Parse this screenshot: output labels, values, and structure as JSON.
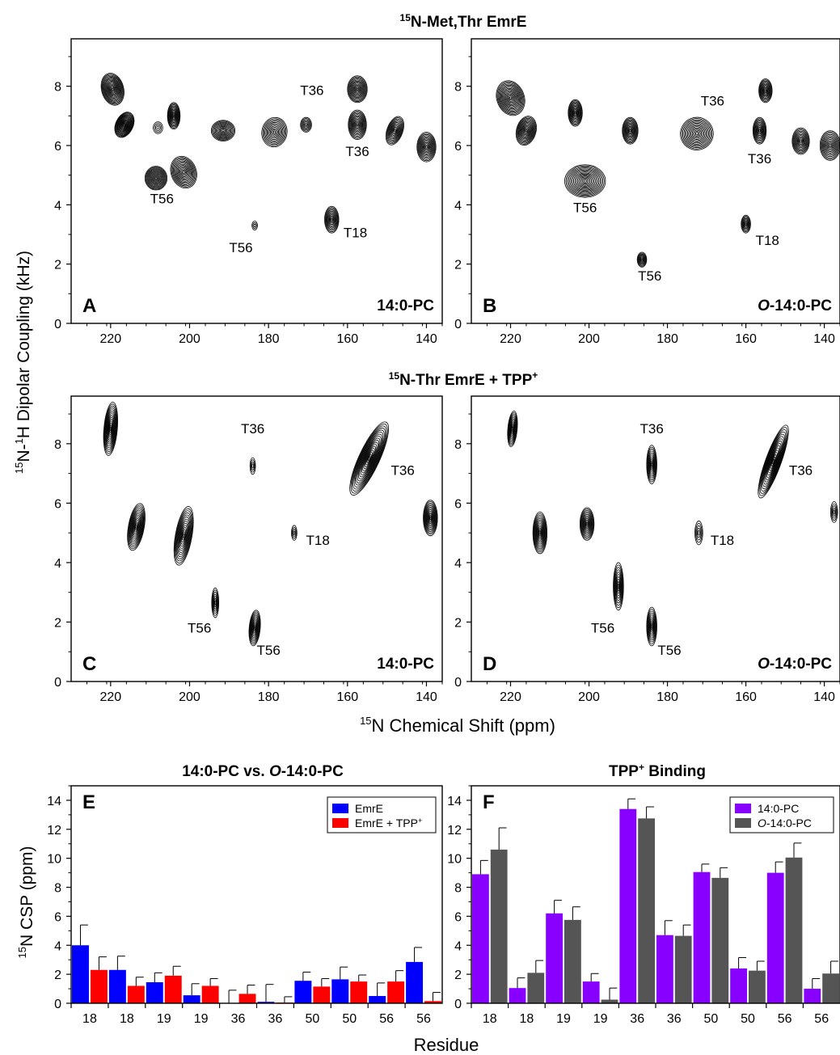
{
  "figure": {
    "title_top": {
      "sup": "15",
      "text": "N-Met,Thr EmrE"
    },
    "title_mid": {
      "sup": "15",
      "text": "N-Thr EmrE + TPP",
      "sup2": "+"
    },
    "nmr_ylabel": {
      "sup1": "15",
      "a": "N-",
      "sup2": "1",
      "b": "H Dipolar Coupling (kHz)"
    },
    "nmr_xlabel": {
      "sup": "15",
      "text": "N Chemical Shift (ppm)"
    },
    "bar_ylabel": {
      "sup": "15",
      "text": "N CSP (ppm)"
    },
    "bar_xlabel": "Residue",
    "title_E": {
      "a": "14:0-PC vs. ",
      "italic": "O",
      "b": "-14:0-PC"
    },
    "title_F": {
      "a": "TPP",
      "sup": "+",
      "b": " Binding"
    }
  },
  "chart_data": [
    {
      "panel": "A",
      "type": "contour",
      "lipid": "14:0-PC",
      "x_ticks": [
        220,
        200,
        180,
        160,
        140
      ],
      "y_ticks": [
        0,
        2,
        4,
        6,
        8
      ],
      "xlim": [
        230,
        136
      ],
      "ylim": [
        0,
        9.6
      ],
      "peaks": [
        {
          "x": 219.5,
          "y": 7.9,
          "sx": 2.8,
          "sy": 0.55,
          "rot": -15,
          "n": 16
        },
        {
          "x": 216.5,
          "y": 6.7,
          "sx": 2.2,
          "sy": 0.45,
          "rot": 25,
          "n": 16
        },
        {
          "x": 208,
          "y": 6.6,
          "sx": 1.2,
          "sy": 0.2,
          "rot": 0,
          "n": 4
        },
        {
          "x": 204,
          "y": 7.0,
          "sx": 1.6,
          "sy": 0.45,
          "rot": 0,
          "n": 12
        },
        {
          "x": 208.5,
          "y": 4.9,
          "sx": 2.8,
          "sy": 0.4,
          "rot": 0,
          "n": 14
        },
        {
          "x": 201.5,
          "y": 5.1,
          "sx": 3.2,
          "sy": 0.55,
          "rot": -20,
          "n": 14
        },
        {
          "x": 191.5,
          "y": 6.5,
          "sx": 3.0,
          "sy": 0.35,
          "rot": 0,
          "n": 12
        },
        {
          "x": 178.5,
          "y": 6.45,
          "sx": 3.2,
          "sy": 0.5,
          "rot": 10,
          "n": 12
        },
        {
          "x": 170.5,
          "y": 6.7,
          "sx": 1.4,
          "sy": 0.25,
          "rot": 0,
          "n": 7
        },
        {
          "x": 157.5,
          "y": 7.9,
          "sx": 2.5,
          "sy": 0.45,
          "rot": 0,
          "n": 13
        },
        {
          "x": 157.5,
          "y": 6.7,
          "sx": 2.3,
          "sy": 0.5,
          "rot": 0,
          "n": 13
        },
        {
          "x": 148,
          "y": 6.5,
          "sx": 2.0,
          "sy": 0.5,
          "rot": 20,
          "n": 12
        },
        {
          "x": 140,
          "y": 5.95,
          "sx": 2.4,
          "sy": 0.5,
          "rot": 0,
          "n": 13
        },
        {
          "x": 164,
          "y": 3.5,
          "sx": 1.8,
          "sy": 0.45,
          "rot": 0,
          "n": 11
        },
        {
          "x": 183.5,
          "y": 3.3,
          "sx": 0.7,
          "sy": 0.15,
          "rot": 0,
          "n": 3
        }
      ],
      "labels": [
        {
          "text": "T36",
          "x": 169,
          "y": 7.7
        },
        {
          "text": "T36",
          "x": 157.5,
          "y": 5.65
        },
        {
          "text": "T56",
          "x": 207,
          "y": 4.05
        },
        {
          "text": "T56",
          "x": 187,
          "y": 2.4
        },
        {
          "text": "T18",
          "x": 158,
          "y": 2.9
        }
      ]
    },
    {
      "panel": "B",
      "type": "contour",
      "lipid": "O-14:0-PC",
      "x_ticks": [
        220,
        200,
        180,
        160,
        140
      ],
      "y_ticks": [
        0,
        2,
        4,
        6,
        8
      ],
      "xlim": [
        230,
        136
      ],
      "ylim": [
        0,
        9.6
      ],
      "peaks": [
        {
          "x": 220,
          "y": 7.6,
          "sx": 3.5,
          "sy": 0.6,
          "rot": -20,
          "n": 16
        },
        {
          "x": 216,
          "y": 6.5,
          "sx": 2.5,
          "sy": 0.5,
          "rot": 15,
          "n": 14
        },
        {
          "x": 203.5,
          "y": 7.1,
          "sx": 1.8,
          "sy": 0.45,
          "rot": 0,
          "n": 12
        },
        {
          "x": 201,
          "y": 4.8,
          "sx": 5.2,
          "sy": 0.55,
          "rot": 0,
          "n": 16
        },
        {
          "x": 189.5,
          "y": 6.5,
          "sx": 2.0,
          "sy": 0.45,
          "rot": 0,
          "n": 12
        },
        {
          "x": 172.5,
          "y": 6.4,
          "sx": 4.2,
          "sy": 0.55,
          "rot": -20,
          "n": 14
        },
        {
          "x": 155,
          "y": 7.85,
          "sx": 1.7,
          "sy": 0.4,
          "rot": 0,
          "n": 11
        },
        {
          "x": 156.5,
          "y": 6.5,
          "sx": 1.7,
          "sy": 0.45,
          "rot": 0,
          "n": 11
        },
        {
          "x": 146,
          "y": 6.15,
          "sx": 2.2,
          "sy": 0.45,
          "rot": 0,
          "n": 12
        },
        {
          "x": 138.5,
          "y": 6.0,
          "sx": 2.6,
          "sy": 0.5,
          "rot": 0,
          "n": 12
        },
        {
          "x": 160,
          "y": 3.35,
          "sx": 1.2,
          "sy": 0.3,
          "rot": 0,
          "n": 8
        },
        {
          "x": 186.5,
          "y": 2.15,
          "sx": 1.2,
          "sy": 0.25,
          "rot": 0,
          "n": 8
        }
      ],
      "labels": [
        {
          "text": "T36",
          "x": 168.5,
          "y": 7.35
        },
        {
          "text": "T36",
          "x": 156.5,
          "y": 5.4
        },
        {
          "text": "T56",
          "x": 201,
          "y": 3.75
        },
        {
          "text": "T56",
          "x": 184.5,
          "y": 1.45
        },
        {
          "text": "T18",
          "x": 154.5,
          "y": 2.65
        }
      ]
    },
    {
      "panel": "C",
      "type": "contour",
      "lipid": "14:0-PC",
      "x_ticks": [
        220,
        200,
        180,
        160,
        140
      ],
      "y_ticks": [
        0,
        2,
        4,
        6,
        8
      ],
      "xlim": [
        230,
        136
      ],
      "ylim": [
        0,
        9.6
      ],
      "peaks": [
        {
          "x": 220,
          "y": 8.5,
          "sx": 1.7,
          "sy": 0.9,
          "rot": 5,
          "n": 14
        },
        {
          "x": 213.5,
          "y": 5.2,
          "sx": 2.0,
          "sy": 0.8,
          "rot": 10,
          "n": 14
        },
        {
          "x": 201.5,
          "y": 4.9,
          "sx": 2.1,
          "sy": 1.0,
          "rot": 10,
          "n": 14
        },
        {
          "x": 184,
          "y": 7.25,
          "sx": 0.7,
          "sy": 0.28,
          "rot": 0,
          "n": 4
        },
        {
          "x": 173.5,
          "y": 5.0,
          "sx": 0.7,
          "sy": 0.25,
          "rot": 0,
          "n": 4
        },
        {
          "x": 154.5,
          "y": 7.5,
          "sx": 2.6,
          "sy": 1.35,
          "rot": 25,
          "n": 18
        },
        {
          "x": 139,
          "y": 5.5,
          "sx": 1.8,
          "sy": 0.6,
          "rot": 0,
          "n": 13
        },
        {
          "x": 193.5,
          "y": 2.65,
          "sx": 0.9,
          "sy": 0.5,
          "rot": 0,
          "n": 7
        },
        {
          "x": 183.5,
          "y": 1.8,
          "sx": 1.4,
          "sy": 0.6,
          "rot": 5,
          "n": 11
        }
      ],
      "labels": [
        {
          "text": "T36",
          "x": 184,
          "y": 8.35
        },
        {
          "text": "T36",
          "x": 146,
          "y": 6.95
        },
        {
          "text": "T18",
          "x": 167.5,
          "y": 4.6
        },
        {
          "text": "T56",
          "x": 197.5,
          "y": 1.65
        },
        {
          "text": "T56",
          "x": 180,
          "y": 0.9
        }
      ]
    },
    {
      "panel": "D",
      "type": "contour",
      "lipid": "O-14:0-PC",
      "x_ticks": [
        220,
        200,
        180,
        160,
        140
      ],
      "y_ticks": [
        0,
        2,
        4,
        6,
        8
      ],
      "xlim": [
        230,
        136
      ],
      "ylim": [
        0,
        9.6
      ],
      "peaks": [
        {
          "x": 219.5,
          "y": 8.5,
          "sx": 1.2,
          "sy": 0.6,
          "rot": 5,
          "n": 11
        },
        {
          "x": 212.5,
          "y": 5.0,
          "sx": 1.8,
          "sy": 0.7,
          "rot": 0,
          "n": 13
        },
        {
          "x": 200.5,
          "y": 5.3,
          "sx": 1.8,
          "sy": 0.55,
          "rot": 0,
          "n": 12
        },
        {
          "x": 184,
          "y": 7.3,
          "sx": 1.3,
          "sy": 0.65,
          "rot": 0,
          "n": 10
        },
        {
          "x": 172,
          "y": 5.0,
          "sx": 1.0,
          "sy": 0.4,
          "rot": 0,
          "n": 5
        },
        {
          "x": 153,
          "y": 7.4,
          "sx": 2.0,
          "sy": 1.3,
          "rot": 20,
          "n": 16
        },
        {
          "x": 137.5,
          "y": 5.7,
          "sx": 0.9,
          "sy": 0.35,
          "rot": 0,
          "n": 5
        },
        {
          "x": 192.5,
          "y": 3.2,
          "sx": 1.3,
          "sy": 0.8,
          "rot": 0,
          "n": 10
        },
        {
          "x": 184,
          "y": 1.85,
          "sx": 1.3,
          "sy": 0.65,
          "rot": 0,
          "n": 10
        }
      ],
      "labels": [
        {
          "text": "T36",
          "x": 184,
          "y": 8.35
        },
        {
          "text": "T36",
          "x": 146,
          "y": 6.95
        },
        {
          "text": "T18",
          "x": 166,
          "y": 4.6
        },
        {
          "text": "T56",
          "x": 196.5,
          "y": 1.65
        },
        {
          "text": "T56",
          "x": 179.5,
          "y": 0.9
        }
      ]
    },
    {
      "panel": "E",
      "type": "bar",
      "categories": [
        "18",
        "18",
        "19",
        "19",
        "36",
        "36",
        "50",
        "50",
        "56",
        "56"
      ],
      "ylim": [
        0,
        15
      ],
      "y_ticks": [
        0,
        2,
        4,
        6,
        8,
        10,
        12,
        14
      ],
      "series": [
        {
          "name": "EmrE",
          "color": "#0000ff",
          "values": [
            4.0,
            2.3,
            1.45,
            0.55,
            0.0,
            0.1,
            1.55,
            1.65,
            0.5,
            2.85
          ],
          "errors": [
            1.4,
            0.95,
            0.65,
            0.8,
            0.9,
            1.2,
            0.6,
            0.85,
            0.9,
            1.0
          ]
        },
        {
          "name": "EmrE + TPP+",
          "color": "#ff0000",
          "values": [
            2.3,
            1.2,
            1.9,
            1.2,
            0.65,
            0.05,
            1.15,
            1.5,
            1.5,
            0.15
          ],
          "errors": [
            0.9,
            0.6,
            0.65,
            0.5,
            0.6,
            0.4,
            0.55,
            0.45,
            0.75,
            0.6
          ]
        }
      ]
    },
    {
      "panel": "F",
      "type": "bar",
      "categories": [
        "18",
        "18",
        "19",
        "19",
        "36",
        "36",
        "50",
        "50",
        "56",
        "56"
      ],
      "ylim": [
        0,
        15
      ],
      "y_ticks": [
        0,
        2,
        4,
        6,
        8,
        10,
        12,
        14
      ],
      "series": [
        {
          "name": "14:0-PC",
          "color": "#8800ff",
          "values": [
            8.9,
            1.05,
            6.2,
            1.5,
            13.4,
            4.7,
            9.05,
            2.4,
            9.0,
            1.0
          ],
          "errors": [
            0.95,
            0.7,
            0.9,
            0.55,
            0.7,
            1.0,
            0.55,
            0.75,
            0.75,
            0.7
          ]
        },
        {
          "name": "O-14:0-PC",
          "color": "#555555",
          "values": [
            10.6,
            2.1,
            5.75,
            0.25,
            12.75,
            4.65,
            8.65,
            2.25,
            10.05,
            2.05
          ],
          "errors": [
            1.5,
            0.85,
            0.9,
            0.8,
            0.8,
            0.75,
            0.7,
            0.65,
            1.0,
            0.85
          ]
        }
      ]
    }
  ]
}
